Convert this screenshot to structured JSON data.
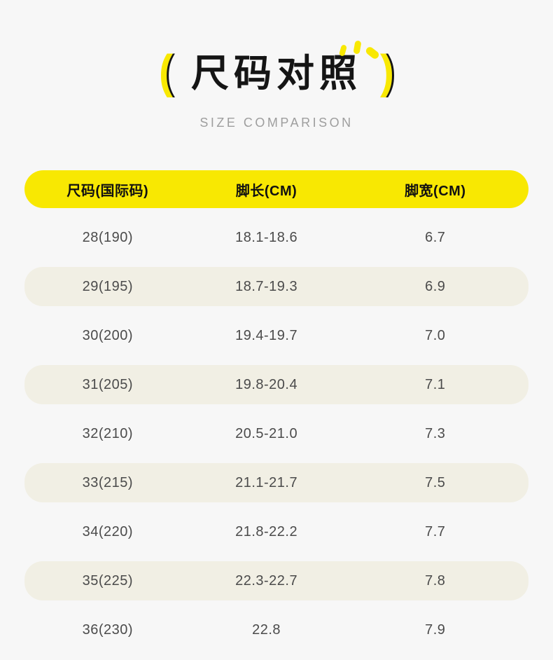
{
  "style": {
    "bg": "#f7f7f7",
    "accent": "#f8e802",
    "stripe": "#f1efe4",
    "ink": "#151515",
    "cell": "#4b4b4b",
    "muted": "#9e9e9e"
  },
  "header": {
    "left_paren": "(",
    "right_paren": ")"
  },
  "chart_data": {
    "type": "table",
    "title": "尺码对照",
    "subtitle": "SIZE COMPARISON",
    "columns": [
      "尺码(国际码)",
      "脚长(CM)",
      "脚宽(CM)"
    ],
    "rows": [
      [
        "28(190)",
        "18.1-18.6",
        "6.7"
      ],
      [
        "29(195)",
        "18.7-19.3",
        "6.9"
      ],
      [
        "30(200)",
        "19.4-19.7",
        "7.0"
      ],
      [
        "31(205)",
        "19.8-20.4",
        "7.1"
      ],
      [
        "32(210)",
        "20.5-21.0",
        "7.3"
      ],
      [
        "33(215)",
        "21.1-21.7",
        "7.5"
      ],
      [
        "34(220)",
        "21.8-22.2",
        "7.7"
      ],
      [
        "35(225)",
        "22.3-22.7",
        "7.8"
      ],
      [
        "36(230)",
        "22.8",
        "7.9"
      ]
    ]
  }
}
